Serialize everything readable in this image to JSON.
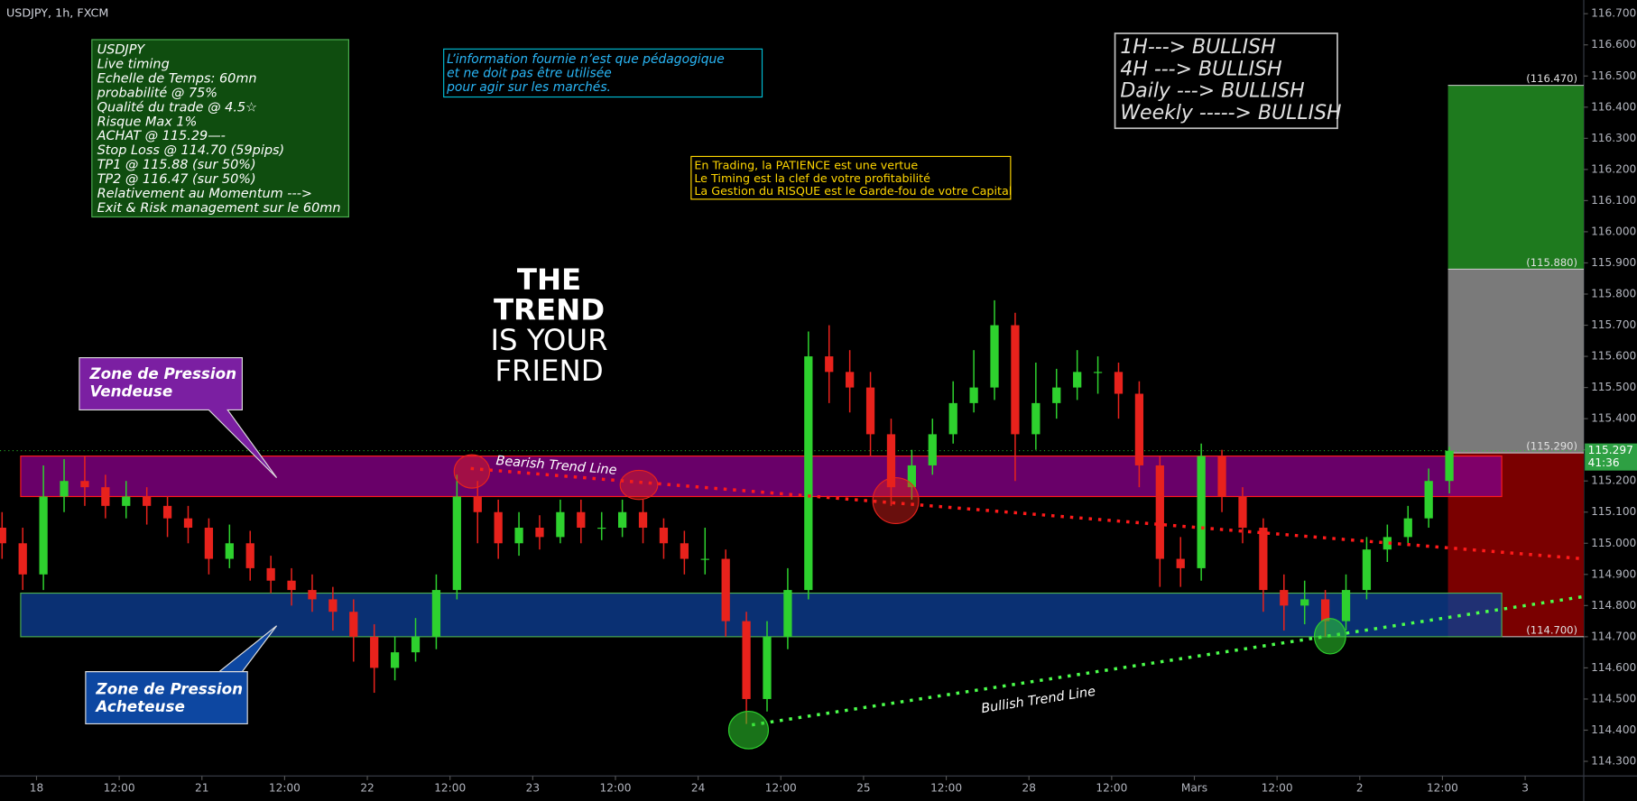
{
  "chart_data": {
    "type": "candlestick",
    "title": "USDJPY, 1h, FXCM",
    "up_color": "#2ed12e",
    "down_color": "#e8221c",
    "grid": false,
    "xlim": [
      -5.3,
      224.5
    ],
    "ylim": [
      114.253,
      116.744
    ],
    "xticks": [
      {
        "value": 0,
        "label": "18"
      },
      {
        "value": 12,
        "label": "12:00"
      },
      {
        "value": 24,
        "label": "21"
      },
      {
        "value": 36,
        "label": "12:00"
      },
      {
        "value": 48,
        "label": "22"
      },
      {
        "value": 60,
        "label": "12:00"
      },
      {
        "value": 72,
        "label": "23"
      },
      {
        "value": 84,
        "label": "12:00"
      },
      {
        "value": 96,
        "label": "24"
      },
      {
        "value": 108,
        "label": "12:00"
      },
      {
        "value": 120,
        "label": "25"
      },
      {
        "value": 132,
        "label": "12:00"
      },
      {
        "value": 144,
        "label": "28"
      },
      {
        "value": 156,
        "label": "12:00"
      },
      {
        "value": 168,
        "label": "Mars"
      },
      {
        "value": 180,
        "label": "12:00"
      },
      {
        "value": 192,
        "label": "2"
      },
      {
        "value": 204,
        "label": "12:00"
      },
      {
        "value": 216,
        "label": "3"
      }
    ],
    "yticks": [
      {
        "value": 114.3,
        "label": "114.300"
      },
      {
        "value": 114.4,
        "label": "114.400"
      },
      {
        "value": 114.5,
        "label": "114.500"
      },
      {
        "value": 114.6,
        "label": "114.600"
      },
      {
        "value": 114.7,
        "label": "114.700"
      },
      {
        "value": 114.8,
        "label": "114.800"
      },
      {
        "value": 114.9,
        "label": "114.900"
      },
      {
        "value": 115.0,
        "label": "115.000"
      },
      {
        "value": 115.1,
        "label": "115.100"
      },
      {
        "value": 115.2,
        "label": "115.200"
      },
      {
        "value": 115.3,
        "label": "115.300"
      },
      {
        "value": 115.4,
        "label": "115.400"
      },
      {
        "value": 115.5,
        "label": "115.500"
      },
      {
        "value": 115.6,
        "label": "115.600"
      },
      {
        "value": 115.7,
        "label": "115.700"
      },
      {
        "value": 115.8,
        "label": "115.800"
      },
      {
        "value": 115.9,
        "label": "115.900"
      },
      {
        "value": 116.0,
        "label": "116.000"
      },
      {
        "value": 116.1,
        "label": "116.100"
      },
      {
        "value": 116.2,
        "label": "116.200"
      },
      {
        "value": 116.3,
        "label": "116.300"
      },
      {
        "value": 116.4,
        "label": "116.400"
      },
      {
        "value": 116.5,
        "label": "116.500"
      },
      {
        "value": 116.6,
        "label": "116.600"
      },
      {
        "value": 116.7,
        "label": "116.700"
      }
    ],
    "x": [
      -5,
      -2,
      1,
      4,
      7,
      10,
      13,
      16,
      19,
      22,
      25,
      28,
      31,
      34,
      37,
      40,
      43,
      46,
      49,
      52,
      55,
      58,
      61,
      64,
      67,
      70,
      73,
      76,
      79,
      82,
      85,
      88,
      91,
      94,
      97,
      100,
      103,
      106,
      109,
      112,
      115,
      118,
      121,
      124,
      127,
      130,
      133,
      136,
      139,
      142,
      145,
      148,
      151,
      154,
      157,
      160,
      163,
      166,
      169,
      172,
      175,
      178,
      181,
      184,
      187,
      190,
      193,
      196,
      199,
      202,
      205
    ],
    "ohlc": [
      [
        115.05,
        115.1,
        114.95,
        115.0
      ],
      [
        115.0,
        115.05,
        114.85,
        114.9
      ],
      [
        114.9,
        115.25,
        114.85,
        115.15
      ],
      [
        115.15,
        115.27,
        115.1,
        115.2
      ],
      [
        115.2,
        115.28,
        115.12,
        115.18
      ],
      [
        115.18,
        115.22,
        115.08,
        115.12
      ],
      [
        115.12,
        115.2,
        115.08,
        115.15
      ],
      [
        115.15,
        115.18,
        115.06,
        115.12
      ],
      [
        115.12,
        115.15,
        115.02,
        115.08
      ],
      [
        115.08,
        115.12,
        115.0,
        115.05
      ],
      [
        115.05,
        115.08,
        114.9,
        114.95
      ],
      [
        114.95,
        115.06,
        114.92,
        115.0
      ],
      [
        115.0,
        115.04,
        114.88,
        114.92
      ],
      [
        114.92,
        114.96,
        114.84,
        114.88
      ],
      [
        114.88,
        114.92,
        114.8,
        114.85
      ],
      [
        114.85,
        114.9,
        114.78,
        114.82
      ],
      [
        114.82,
        114.86,
        114.72,
        114.78
      ],
      [
        114.78,
        114.82,
        114.62,
        114.7
      ],
      [
        114.7,
        114.74,
        114.52,
        114.6
      ],
      [
        114.6,
        114.7,
        114.56,
        114.65
      ],
      [
        114.65,
        114.76,
        114.62,
        114.7
      ],
      [
        114.7,
        114.9,
        114.66,
        114.85
      ],
      [
        114.85,
        115.22,
        114.82,
        115.15
      ],
      [
        115.15,
        115.2,
        115.0,
        115.1
      ],
      [
        115.1,
        115.14,
        114.95,
        115.0
      ],
      [
        115.0,
        115.1,
        114.96,
        115.05
      ],
      [
        115.05,
        115.09,
        114.98,
        115.02
      ],
      [
        115.02,
        115.14,
        115.0,
        115.1
      ],
      [
        115.1,
        115.14,
        115.0,
        115.05
      ],
      [
        115.05,
        115.1,
        115.01,
        115.05
      ],
      [
        115.05,
        115.14,
        115.02,
        115.1
      ],
      [
        115.1,
        115.14,
        115.0,
        115.05
      ],
      [
        115.05,
        115.08,
        114.95,
        115.0
      ],
      [
        115.0,
        115.04,
        114.9,
        114.95
      ],
      [
        114.95,
        115.05,
        114.9,
        114.95
      ],
      [
        114.95,
        114.98,
        114.7,
        114.75
      ],
      [
        114.75,
        114.78,
        114.42,
        114.5
      ],
      [
        114.5,
        114.75,
        114.46,
        114.7
      ],
      [
        114.7,
        114.92,
        114.66,
        114.85
      ],
      [
        114.85,
        115.68,
        114.82,
        115.6
      ],
      [
        115.6,
        115.7,
        115.45,
        115.55
      ],
      [
        115.55,
        115.62,
        115.42,
        115.5
      ],
      [
        115.5,
        115.55,
        115.28,
        115.35
      ],
      [
        115.35,
        115.4,
        115.12,
        115.18
      ],
      [
        115.18,
        115.3,
        115.14,
        115.25
      ],
      [
        115.25,
        115.4,
        115.22,
        115.35
      ],
      [
        115.35,
        115.52,
        115.32,
        115.45
      ],
      [
        115.45,
        115.62,
        115.42,
        115.5
      ],
      [
        115.5,
        115.78,
        115.46,
        115.7
      ],
      [
        115.7,
        115.74,
        115.2,
        115.35
      ],
      [
        115.35,
        115.58,
        115.3,
        115.45
      ],
      [
        115.45,
        115.56,
        115.4,
        115.5
      ],
      [
        115.5,
        115.62,
        115.46,
        115.55
      ],
      [
        115.55,
        115.6,
        115.48,
        115.55
      ],
      [
        115.55,
        115.58,
        115.4,
        115.48
      ],
      [
        115.48,
        115.52,
        115.18,
        115.25
      ],
      [
        115.25,
        115.28,
        114.86,
        114.95
      ],
      [
        114.95,
        115.02,
        114.86,
        114.92
      ],
      [
        114.92,
        115.32,
        114.88,
        115.28
      ],
      [
        115.28,
        115.3,
        115.1,
        115.15
      ],
      [
        115.15,
        115.18,
        115.0,
        115.05
      ],
      [
        115.05,
        115.08,
        114.78,
        114.85
      ],
      [
        114.85,
        114.9,
        114.72,
        114.8
      ],
      [
        114.8,
        114.88,
        114.74,
        114.82
      ],
      [
        114.82,
        114.85,
        114.7,
        114.75
      ],
      [
        114.75,
        114.9,
        114.72,
        114.85
      ],
      [
        114.85,
        115.02,
        114.82,
        114.98
      ],
      [
        114.98,
        115.06,
        114.94,
        115.02
      ],
      [
        115.02,
        115.12,
        115.0,
        115.08
      ],
      [
        115.08,
        115.24,
        115.05,
        115.2
      ],
      [
        115.2,
        115.31,
        115.16,
        115.297
      ]
    ],
    "countdown": "41:36",
    "position_x": 204.8,
    "levels": [
      {
        "value": 116.47,
        "label": "(116.470)"
      },
      {
        "value": 115.88,
        "label": "(115.880)"
      },
      {
        "value": 115.29,
        "label": "(115.290)"
      },
      {
        "value": 114.7,
        "label": "(114.700)"
      }
    ],
    "position_colors": [
      "#1e7a1e",
      "#7a7a7a",
      "#7a0000"
    ],
    "zones": [
      {
        "label": [
          "Zone de Pression",
          "Vendeuse"
        ],
        "from": 115.15,
        "to": 115.28,
        "x": [
          -2.3,
          212.6
        ],
        "color": "#800080",
        "border": "#ff1a1a"
      },
      {
        "label": [
          "Zone de Pression",
          "Acheteuse"
        ],
        "from": 114.7,
        "to": 114.84,
        "x": [
          -2.3,
          212.6
        ],
        "color": "#0c3a8c",
        "border": "#4caf50"
      }
    ],
    "trend_lines": [
      {
        "label": "Bearish Trend Line",
        "x": [
          63,
          224.5
        ],
        "y": [
          115.24,
          114.95
        ],
        "color": "#ff1a1a"
      },
      {
        "label": "Bullish Trend Line",
        "x": [
          103.8,
          224.5
        ],
        "y": [
          114.417,
          114.829
        ],
        "color": "#4cff4c"
      }
    ],
    "trade_plan": [
      "USDJPY",
      "Live timing",
      "Echelle de Temps: 60mn",
      "probabilité @ 75%",
      "Qualité du trade @ 4.5☆",
      "Risque Max 1%",
      "ACHAT @ 115.29—-",
      "Stop Loss @ 114.70 (59pips)",
      "TP1 @ 115.88 (sur 50%)",
      "TP2 @ 116.47 (sur 50%)",
      "Relativement au Momentum --->",
      "Exit & Risk management sur le 60mn"
    ],
    "disclaimer": [
      "L’information fournie n’est que pédagogique",
      "et ne doit pas être utilisée",
      "pour agir sur les marchés."
    ],
    "motto": [
      "En Trading, la PATIENCE est une vertue",
      "Le Timing est la clef de votre profitabilité",
      "La Gestion du RISQUE est le Garde-fou de votre Capital"
    ],
    "timeframes": [
      "1H---> BULLISH",
      "4H ---> BULLISH",
      "Daily ---> BULLISH",
      "Weekly -----> BULLISH"
    ],
    "slogan": [
      "THE",
      "TREND",
      "IS YOUR",
      "FRIEND"
    ]
  }
}
